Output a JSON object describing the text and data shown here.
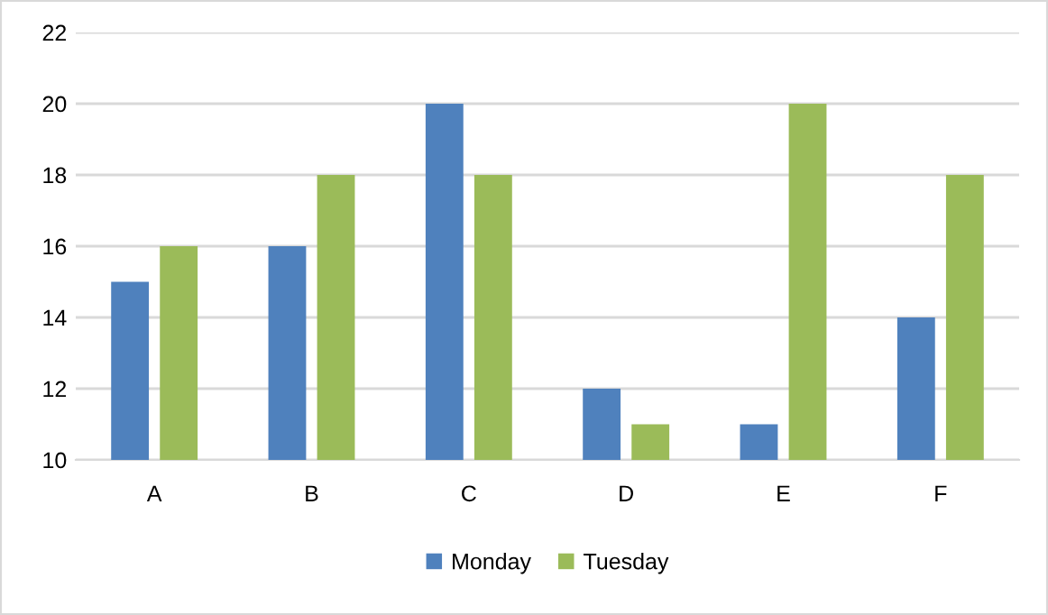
{
  "chart_data": {
    "type": "bar",
    "categories": [
      "A",
      "B",
      "C",
      "D",
      "E",
      "F"
    ],
    "series": [
      {
        "name": "Monday",
        "color": "#4f81bd",
        "values": [
          15,
          16,
          20,
          12,
          11,
          14
        ]
      },
      {
        "name": "Tuesday",
        "color": "#9bbb59",
        "values": [
          16,
          18,
          18,
          11,
          20,
          18
        ]
      }
    ],
    "ylim": [
      10,
      22
    ],
    "yticks": [
      10,
      12,
      14,
      16,
      18,
      20,
      22
    ],
    "grid": "y",
    "legend": "bottom"
  }
}
